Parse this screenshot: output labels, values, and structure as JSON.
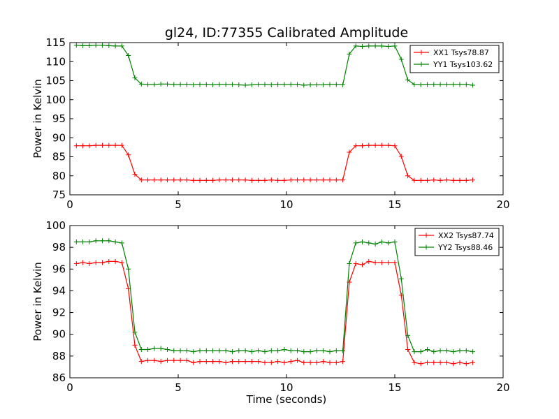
{
  "figure": {
    "title": "gl24, ID:77355 Calibrated Amplitude",
    "xlabel": "Time (seconds)"
  },
  "chart_data": [
    {
      "type": "line",
      "title": "gl24, ID:77355 Calibrated Amplitude",
      "xlabel": "",
      "ylabel": "Power in Kelvin",
      "xlim": [
        0,
        20
      ],
      "ylim": [
        75,
        115
      ],
      "xticks": [
        "0",
        "5",
        "10",
        "15",
        "20"
      ],
      "yticks": [
        "75",
        "80",
        "85",
        "90",
        "95",
        "100",
        "105",
        "110",
        "115"
      ],
      "legend_position": "top-right",
      "grid": false,
      "x": [
        0.3,
        0.6,
        0.9,
        1.2,
        1.5,
        1.8,
        2.1,
        2.4,
        2.7,
        3.0,
        3.3,
        3.6,
        3.9,
        4.2,
        4.5,
        4.8,
        5.1,
        5.4,
        5.7,
        6.0,
        6.3,
        6.6,
        6.9,
        7.2,
        7.5,
        7.8,
        8.1,
        8.4,
        8.7,
        9.0,
        9.3,
        9.6,
        9.9,
        10.2,
        10.5,
        10.8,
        11.1,
        11.4,
        11.7,
        12.0,
        12.3,
        12.6,
        12.9,
        13.2,
        13.5,
        13.8,
        14.1,
        14.4,
        14.7,
        15.0,
        15.3,
        15.6,
        15.9,
        16.2,
        16.5,
        16.8,
        17.1,
        17.4,
        17.7,
        18.0,
        18.3,
        18.6
      ],
      "series": [
        {
          "name": "XX1 Tsys78.87",
          "color": "#ff0000",
          "values": [
            87.9,
            87.9,
            87.9,
            88.0,
            88.0,
            88.0,
            88.0,
            88.0,
            85.5,
            80.4,
            78.9,
            78.9,
            78.9,
            78.9,
            78.9,
            78.9,
            78.9,
            78.9,
            78.8,
            78.8,
            78.8,
            78.8,
            78.9,
            78.9,
            78.9,
            78.9,
            78.9,
            78.8,
            78.8,
            78.8,
            78.9,
            78.8,
            78.8,
            78.9,
            78.9,
            78.9,
            78.9,
            78.9,
            78.9,
            78.9,
            78.9,
            78.9,
            86.2,
            87.9,
            87.9,
            88.0,
            88.0,
            88.0,
            88.0,
            87.9,
            85.1,
            80.0,
            78.8,
            78.8,
            78.8,
            78.9,
            78.8,
            78.9,
            78.8,
            78.8,
            78.8,
            78.9
          ]
        },
        {
          "name": "YY1 Tsys103.62",
          "color": "#008000",
          "values": [
            114.3,
            114.2,
            114.2,
            114.3,
            114.3,
            114.2,
            114.1,
            114.1,
            111.6,
            105.7,
            104.1,
            104.0,
            104.0,
            104.1,
            104.1,
            104.0,
            104.0,
            104.0,
            103.9,
            104.0,
            104.0,
            103.9,
            104.0,
            104.0,
            104.0,
            103.9,
            103.8,
            103.9,
            104.0,
            104.0,
            103.9,
            104.0,
            104.0,
            104.0,
            104.0,
            103.8,
            103.9,
            103.9,
            103.9,
            104.0,
            104.0,
            103.9,
            112.0,
            114.1,
            114.0,
            114.1,
            114.1,
            114.1,
            114.0,
            114.1,
            110.6,
            105.2,
            104.0,
            103.9,
            104.0,
            104.0,
            104.0,
            104.0,
            104.0,
            104.0,
            104.0,
            103.8
          ]
        }
      ]
    },
    {
      "type": "line",
      "title": "",
      "xlabel": "Time (seconds)",
      "ylabel": "Power in Kelvin",
      "xlim": [
        0,
        20
      ],
      "ylim": [
        86,
        100
      ],
      "xticks": [
        "0",
        "5",
        "10",
        "15",
        "20"
      ],
      "yticks": [
        "86",
        "88",
        "90",
        "92",
        "94",
        "96",
        "98",
        "100"
      ],
      "legend_position": "top-right",
      "grid": false,
      "x": [
        0.3,
        0.6,
        0.9,
        1.2,
        1.5,
        1.8,
        2.1,
        2.4,
        2.7,
        3.0,
        3.3,
        3.6,
        3.9,
        4.2,
        4.5,
        4.8,
        5.1,
        5.4,
        5.7,
        6.0,
        6.3,
        6.6,
        6.9,
        7.2,
        7.5,
        7.8,
        8.1,
        8.4,
        8.7,
        9.0,
        9.3,
        9.6,
        9.9,
        10.2,
        10.5,
        10.8,
        11.1,
        11.4,
        11.7,
        12.0,
        12.3,
        12.6,
        12.9,
        13.2,
        13.5,
        13.8,
        14.1,
        14.4,
        14.7,
        15.0,
        15.3,
        15.6,
        15.9,
        16.2,
        16.5,
        16.8,
        17.1,
        17.4,
        17.7,
        18.0,
        18.3,
        18.6
      ],
      "series": [
        {
          "name": "XX2 Tsys87.74",
          "color": "#ff0000",
          "values": [
            96.5,
            96.6,
            96.5,
            96.6,
            96.6,
            96.7,
            96.7,
            96.6,
            94.2,
            89.0,
            87.5,
            87.6,
            87.6,
            87.5,
            87.6,
            87.6,
            87.6,
            87.6,
            87.4,
            87.5,
            87.5,
            87.5,
            87.5,
            87.4,
            87.5,
            87.5,
            87.5,
            87.5,
            87.5,
            87.4,
            87.4,
            87.5,
            87.4,
            87.5,
            87.6,
            87.4,
            87.4,
            87.4,
            87.5,
            87.4,
            87.4,
            87.5,
            94.8,
            96.5,
            96.4,
            96.7,
            96.6,
            96.6,
            96.6,
            96.6,
            93.6,
            88.6,
            87.4,
            87.3,
            87.4,
            87.4,
            87.4,
            87.4,
            87.3,
            87.4,
            87.3,
            87.4
          ]
        },
        {
          "name": "YY2 Tsys88.46",
          "color": "#008000",
          "values": [
            98.5,
            98.5,
            98.5,
            98.6,
            98.6,
            98.6,
            98.5,
            98.4,
            96.0,
            90.2,
            88.6,
            88.6,
            88.7,
            88.7,
            88.6,
            88.5,
            88.5,
            88.5,
            88.4,
            88.5,
            88.5,
            88.5,
            88.5,
            88.5,
            88.4,
            88.5,
            88.5,
            88.4,
            88.5,
            88.4,
            88.5,
            88.5,
            88.6,
            88.5,
            88.5,
            88.4,
            88.4,
            88.5,
            88.5,
            88.4,
            88.5,
            88.5,
            96.5,
            98.4,
            98.5,
            98.4,
            98.3,
            98.5,
            98.4,
            98.5,
            95.1,
            89.9,
            88.4,
            88.4,
            88.6,
            88.4,
            88.5,
            88.5,
            88.4,
            88.5,
            88.5,
            88.4
          ]
        }
      ]
    }
  ]
}
